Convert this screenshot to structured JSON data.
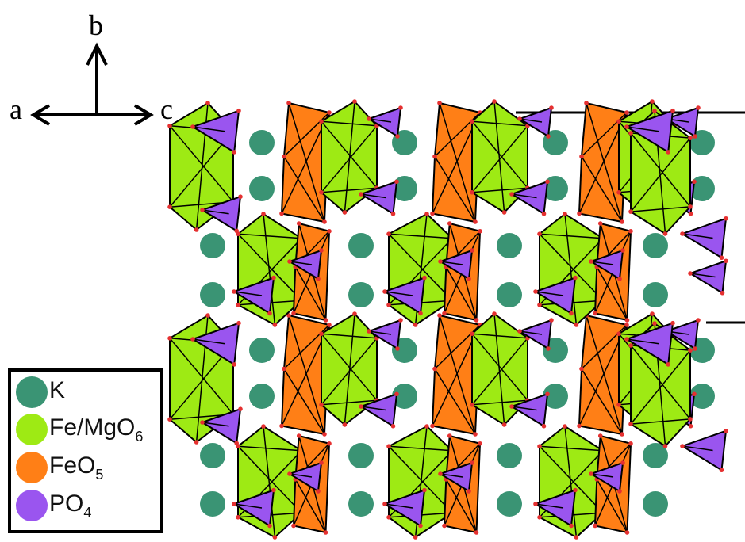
{
  "axes": {
    "labels": [
      "a",
      "b",
      "c"
    ]
  },
  "legend": {
    "items": [
      {
        "label": "K",
        "sub": "",
        "color": "#3a9474"
      },
      {
        "label": "Fe/MgO",
        "sub": "6",
        "color": "#9eea14"
      },
      {
        "label": "FeO",
        "sub": "5",
        "color": "#ff7f16"
      },
      {
        "label": "PO",
        "sub": "4",
        "color": "#9a55ef"
      }
    ]
  },
  "colors": {
    "K": "#3a9474",
    "FeMgO6": "#9eea14",
    "FeO5": "#ff7f16",
    "PO4": "#9a55ef",
    "oxygen": "#e53030",
    "edge": "#000000"
  }
}
